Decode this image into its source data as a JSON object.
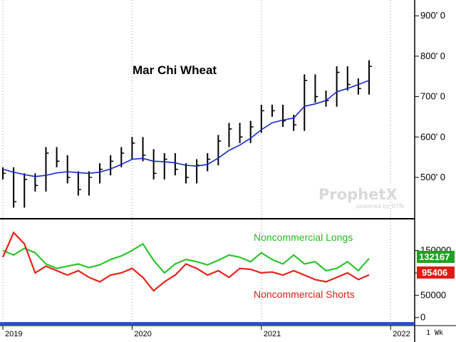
{
  "chart_data": [
    {
      "type": "ohlc",
      "title": "Mar Chi Wheat",
      "y_tick_labels": [
        "900' 0",
        "800' 0",
        "700' 0",
        "600' 0",
        "500' 0"
      ],
      "y_ticks": [
        900,
        800,
        700,
        600,
        500
      ],
      "ylim": [
        410,
        925
      ],
      "x_tick_labels": [
        "2019",
        "2020",
        "2021",
        "2022"
      ],
      "x": [
        "2019-01",
        "2019-02",
        "2019-03",
        "2019-04",
        "2019-05",
        "2019-06",
        "2019-07",
        "2019-08",
        "2019-09",
        "2019-10",
        "2019-11",
        "2019-12",
        "2020-01",
        "2020-02",
        "2020-03",
        "2020-04",
        "2020-05",
        "2020-06",
        "2020-07",
        "2020-08",
        "2020-09",
        "2020-10",
        "2020-11",
        "2020-12",
        "2021-01",
        "2021-02",
        "2021-03",
        "2021-04",
        "2021-05",
        "2021-06",
        "2021-07",
        "2021-08",
        "2021-09",
        "2021-10",
        "2021-11"
      ],
      "close": [
        510,
        440,
        495,
        480,
        560,
        540,
        500,
        470,
        500,
        520,
        540,
        560,
        585,
        555,
        510,
        545,
        520,
        500,
        530,
        545,
        590,
        620,
        600,
        625,
        665,
        665,
        640,
        630,
        740,
        700,
        690,
        760,
        730,
        720,
        775
      ],
      "moving_average": [
        520,
        513,
        507,
        502,
        505,
        511,
        514,
        512,
        510,
        513,
        521,
        532,
        545,
        547,
        540,
        539,
        536,
        530,
        528,
        532,
        548,
        567,
        580,
        597,
        618,
        635,
        642,
        647,
        676,
        682,
        690,
        712,
        720,
        730,
        740
      ],
      "series_names": [
        "Noncommercial Longs",
        "Noncommercial Shorts"
      ],
      "longs": [
        150000,
        140000,
        155000,
        145000,
        120000,
        110000,
        115000,
        120000,
        112000,
        118000,
        130000,
        138000,
        150000,
        165000,
        128000,
        100000,
        120000,
        130000,
        125000,
        118000,
        128000,
        140000,
        135000,
        125000,
        145000,
        130000,
        120000,
        140000,
        120000,
        125000,
        105000,
        110000,
        125000,
        105000,
        132167
      ],
      "shorts": [
        135000,
        190000,
        165000,
        100000,
        115000,
        105000,
        95000,
        105000,
        90000,
        80000,
        95000,
        100000,
        110000,
        90000,
        60000,
        80000,
        95000,
        120000,
        110000,
        95000,
        105000,
        90000,
        110000,
        108000,
        100000,
        102000,
        95000,
        105000,
        95000,
        85000,
        80000,
        90000,
        100000,
        85000,
        95406
      ],
      "lower_y_tick_labels": [
        "150000",
        "100000",
        "50000",
        "0"
      ],
      "lower_y_ticks": [
        150000,
        100000,
        50000,
        0
      ],
      "lower_ylim": [
        -10000,
        210000
      ],
      "last_values": {
        "longs": "132167",
        "shorts": "95406"
      },
      "colors": {
        "price": "#000000",
        "ma": "#1428c8",
        "longs": "#2ec42e",
        "shorts": "#e8231c"
      }
    }
  ],
  "watermark": {
    "brand": "ProphetX",
    "sub": "powered by DTN"
  },
  "period_label": "1 Wk"
}
